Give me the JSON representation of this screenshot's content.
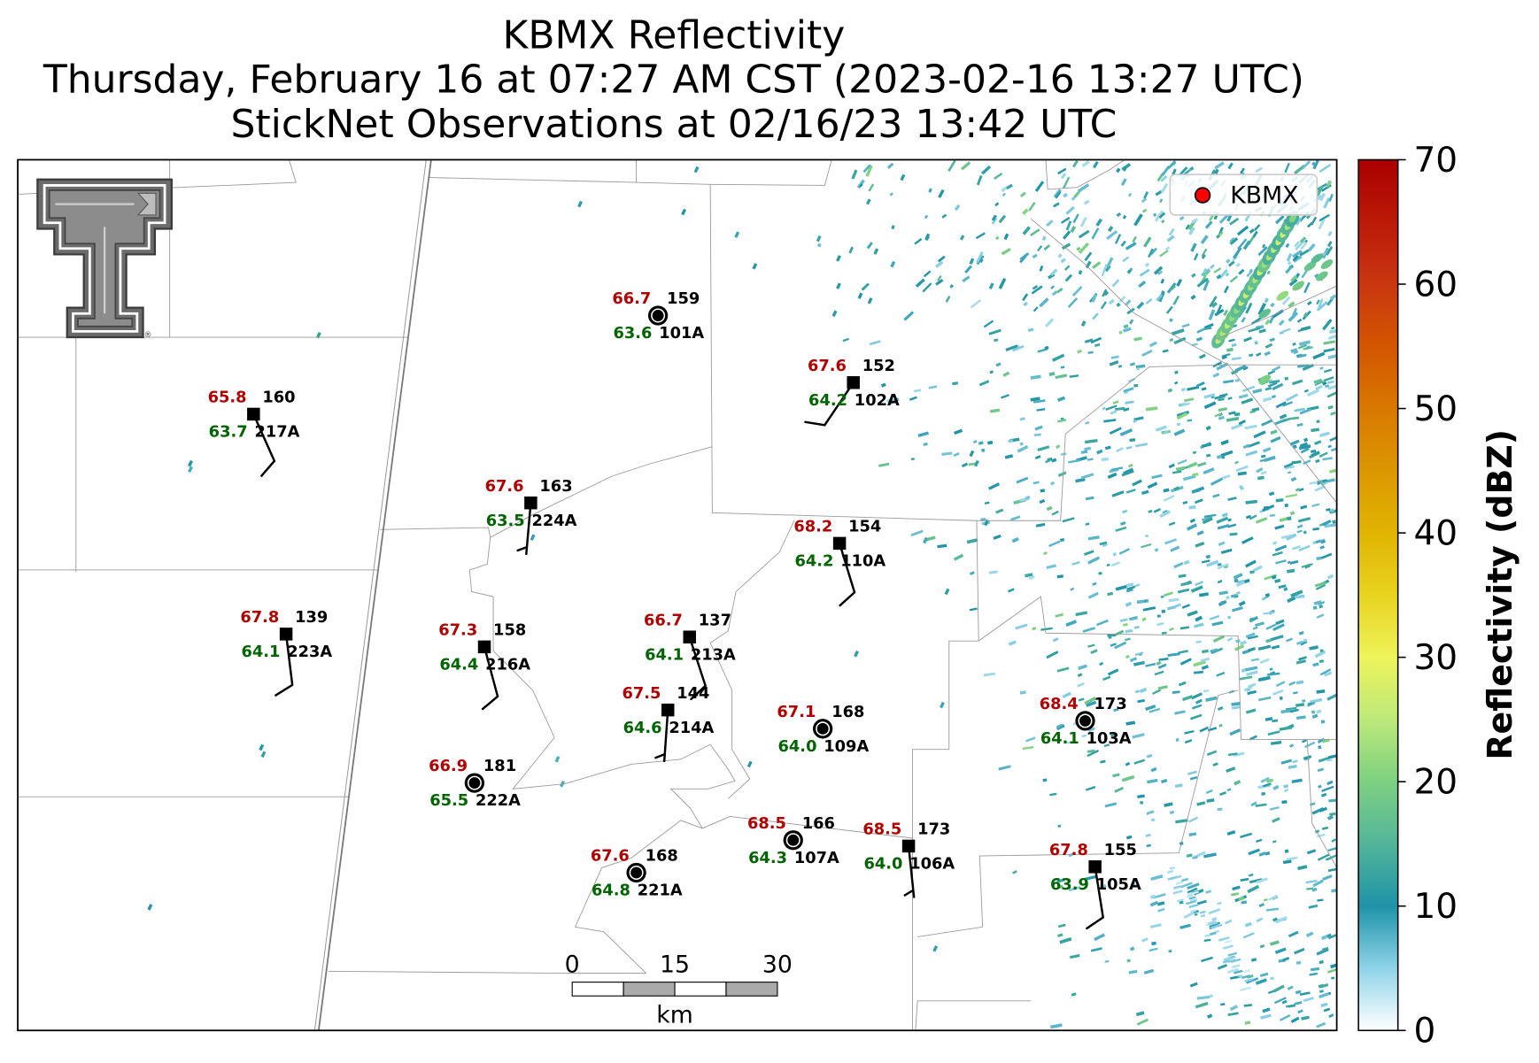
{
  "title": {
    "line1": "KBMX Reflectivity",
    "line2": "Thursday, February 16 at 07:27 AM CST (2023-02-16 13:27 UTC)",
    "line3": "StickNet Observations at 02/16/23 13:42 UTC"
  },
  "legend": {
    "label": "KBMX",
    "marker_color": "#ff0000"
  },
  "colorbar": {
    "label": "Reflectivity (dBZ)",
    "min": 0,
    "max": 70,
    "ticks": [
      0,
      10,
      20,
      30,
      40,
      50,
      60,
      70
    ],
    "stops": [
      {
        "value": 0,
        "color": "#ffffff"
      },
      {
        "value": 5,
        "color": "#8fd3e8"
      },
      {
        "value": 10,
        "color": "#1e93a8"
      },
      {
        "value": 15,
        "color": "#52b59a"
      },
      {
        "value": 20,
        "color": "#7dd081"
      },
      {
        "value": 25,
        "color": "#bde97a"
      },
      {
        "value": 30,
        "color": "#eef35a"
      },
      {
        "value": 35,
        "color": "#e8d320"
      },
      {
        "value": 40,
        "color": "#e0b400"
      },
      {
        "value": 45,
        "color": "#dc9700"
      },
      {
        "value": 50,
        "color": "#d87800"
      },
      {
        "value": 55,
        "color": "#d35600"
      },
      {
        "value": 60,
        "color": "#c93710"
      },
      {
        "value": 65,
        "color": "#bb1a08"
      },
      {
        "value": 70,
        "color": "#aa0000"
      }
    ]
  },
  "scale_bar": {
    "ticks": [
      "0",
      "15",
      "30"
    ],
    "unit": "km"
  },
  "logo": {
    "icon": "texas-tech-double-t-icon",
    "mark": "®"
  },
  "colors": {
    "temperature": "#b00000",
    "dewpoint": "#006400",
    "station_text": "#000000",
    "boundary": "#9a9a9a"
  },
  "stations": [
    {
      "id": "101A",
      "temperature": "66.7",
      "dewpoint": "63.6",
      "pressure": "159",
      "marker": "circle",
      "wind_dir_deg": 0,
      "wind_speed_kt": 0
    },
    {
      "id": "102A",
      "temperature": "67.6",
      "dewpoint": "64.2",
      "pressure": "152",
      "marker": "square",
      "wind_dir_deg": 214,
      "wind_speed_kt": 10
    },
    {
      "id": "217A",
      "temperature": "65.8",
      "dewpoint": "63.7",
      "pressure": "160",
      "marker": "square",
      "wind_dir_deg": 156,
      "wind_speed_kt": 10
    },
    {
      "id": "224A",
      "temperature": "67.6",
      "dewpoint": "63.5",
      "pressure": "163",
      "marker": "square",
      "wind_dir_deg": 185,
      "wind_speed_kt": 5
    },
    {
      "id": "110A",
      "temperature": "68.2",
      "dewpoint": "64.2",
      "pressure": "154",
      "marker": "square",
      "wind_dir_deg": 163,
      "wind_speed_kt": 10
    },
    {
      "id": "223A",
      "temperature": "67.8",
      "dewpoint": "64.1",
      "pressure": "139",
      "marker": "square",
      "wind_dir_deg": 173,
      "wind_speed_kt": 10
    },
    {
      "id": "216A",
      "temperature": "67.3",
      "dewpoint": "64.4",
      "pressure": "158",
      "marker": "square",
      "wind_dir_deg": 165,
      "wind_speed_kt": 10
    },
    {
      "id": "213A",
      "temperature": "66.7",
      "dewpoint": "64.1",
      "pressure": "137",
      "marker": "square",
      "wind_dir_deg": 162,
      "wind_speed_kt": 10
    },
    {
      "id": "214A",
      "temperature": "67.5",
      "dewpoint": "64.6",
      "pressure": "144",
      "marker": "square",
      "wind_dir_deg": 184,
      "wind_speed_kt": 5
    },
    {
      "id": "109A",
      "temperature": "67.1",
      "dewpoint": "64.0",
      "pressure": "168",
      "marker": "circle",
      "wind_dir_deg": 0,
      "wind_speed_kt": 0
    },
    {
      "id": "103A",
      "temperature": "68.4",
      "dewpoint": "64.1",
      "pressure": "173",
      "marker": "circle",
      "wind_dir_deg": 0,
      "wind_speed_kt": 0
    },
    {
      "id": "222A",
      "temperature": "66.9",
      "dewpoint": "65.5",
      "pressure": "181",
      "marker": "circle",
      "wind_dir_deg": 0,
      "wind_speed_kt": 0
    },
    {
      "id": "107A",
      "temperature": "68.5",
      "dewpoint": "64.3",
      "pressure": "166",
      "marker": "circle",
      "wind_dir_deg": 0,
      "wind_speed_kt": 0
    },
    {
      "id": "106A",
      "temperature": "68.5",
      "dewpoint": "64.0",
      "pressure": "173",
      "marker": "square",
      "wind_dir_deg": 174,
      "wind_speed_kt": 5
    },
    {
      "id": "221A",
      "temperature": "67.6",
      "dewpoint": "64.8",
      "pressure": "168",
      "marker": "circle",
      "wind_dir_deg": 0,
      "wind_speed_kt": 0
    },
    {
      "id": "105A",
      "temperature": "67.8",
      "dewpoint": "63.9",
      "pressure": "155",
      "marker": "square",
      "wind_dir_deg": 171,
      "wind_speed_kt": 10
    }
  ]
}
